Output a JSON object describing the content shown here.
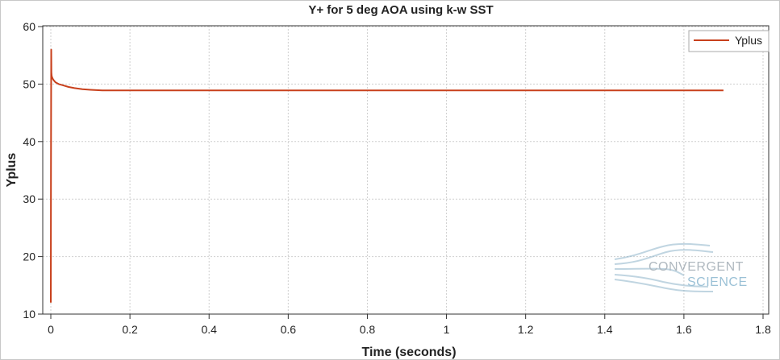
{
  "chart_data": {
    "type": "line",
    "title": "Y+ for 5 deg AOA using k-w SST",
    "xlabel": "Time (seconds)",
    "ylabel": "Yplus",
    "xlim": [
      0,
      1.8
    ],
    "ylim": [
      10,
      60
    ],
    "xticks": [
      0,
      0.2,
      0.4,
      0.6,
      0.8,
      1,
      1.2,
      1.4,
      1.6,
      1.8
    ],
    "yticks": [
      10,
      20,
      30,
      40,
      50,
      60
    ],
    "grid": true,
    "legend_position": "top-right",
    "series": [
      {
        "name": "Yplus",
        "color": "#c8401c",
        "x": [
          0,
          0.0005,
          0.001,
          0.0015,
          0.002,
          0.003,
          0.005,
          0.008,
          0.012,
          0.02,
          0.03,
          0.045,
          0.06,
          0.08,
          0.1,
          0.13,
          0.2,
          0.3,
          0.4,
          0.5,
          0.6,
          0.7,
          0.8,
          0.9,
          1.0,
          1.1,
          1.2,
          1.3,
          1.4,
          1.5,
          1.6,
          1.7
        ],
        "y": [
          12,
          35,
          56,
          52,
          51.5,
          51.2,
          50.9,
          50.6,
          50.3,
          50.0,
          49.8,
          49.5,
          49.3,
          49.1,
          49.0,
          48.9,
          48.9,
          48.9,
          48.9,
          48.9,
          48.9,
          48.9,
          48.9,
          48.9,
          48.9,
          48.9,
          48.9,
          48.9,
          48.9,
          48.9,
          48.9,
          48.9
        ]
      }
    ]
  },
  "watermark": {
    "line1": "CONVERGENT",
    "line2": "SCIENCE"
  }
}
